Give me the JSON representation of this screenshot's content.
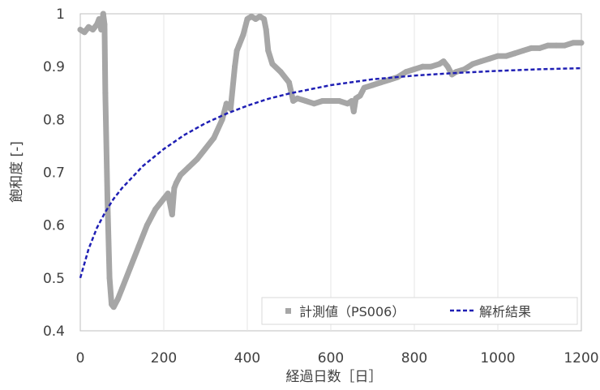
{
  "chart_data": {
    "type": "line",
    "xlabel": "経過日数［日］",
    "ylabel": "飽和度 [-]",
    "xlim": [
      0,
      1200
    ],
    "ylim": [
      0.4,
      1.0
    ],
    "x_ticks": [
      "0",
      "200",
      "400",
      "600",
      "800",
      "1000",
      "1200"
    ],
    "y_ticks": [
      "0.4",
      "0.5",
      "0.6",
      "0.7",
      "0.8",
      "0.9",
      "1"
    ],
    "grid": "vertical",
    "legend_position": "bottom-right",
    "series": [
      {
        "name": "計測値（PS006）",
        "style": "marker-line",
        "color": "#a6a6a6",
        "x": [
          0,
          10,
          20,
          30,
          40,
          45,
          50,
          55,
          58,
          60,
          65,
          70,
          75,
          80,
          90,
          100,
          120,
          140,
          160,
          180,
          200,
          210,
          220,
          225,
          230,
          240,
          260,
          280,
          300,
          320,
          340,
          350,
          360,
          370,
          375,
          380,
          390,
          400,
          410,
          420,
          430,
          440,
          445,
          450,
          460,
          480,
          500,
          510,
          520,
          540,
          560,
          580,
          600,
          620,
          640,
          650,
          655,
          660,
          670,
          680,
          700,
          720,
          740,
          760,
          780,
          800,
          820,
          840,
          860,
          870,
          880,
          890,
          900,
          920,
          940,
          960,
          980,
          1000,
          1020,
          1040,
          1060,
          1080,
          1100,
          1120,
          1140,
          1160,
          1180,
          1200
        ],
        "y": [
          0.97,
          0.965,
          0.975,
          0.97,
          0.98,
          0.99,
          0.97,
          1.0,
          0.98,
          0.85,
          0.65,
          0.5,
          0.45,
          0.445,
          0.46,
          0.48,
          0.52,
          0.56,
          0.6,
          0.63,
          0.65,
          0.66,
          0.62,
          0.67,
          0.68,
          0.695,
          0.71,
          0.725,
          0.745,
          0.765,
          0.8,
          0.83,
          0.82,
          0.9,
          0.93,
          0.94,
          0.96,
          0.99,
          0.995,
          0.99,
          0.995,
          0.99,
          0.97,
          0.93,
          0.905,
          0.89,
          0.87,
          0.835,
          0.84,
          0.835,
          0.83,
          0.835,
          0.835,
          0.835,
          0.83,
          0.835,
          0.815,
          0.84,
          0.845,
          0.86,
          0.865,
          0.87,
          0.875,
          0.88,
          0.89,
          0.895,
          0.9,
          0.9,
          0.905,
          0.91,
          0.9,
          0.885,
          0.89,
          0.895,
          0.905,
          0.91,
          0.915,
          0.92,
          0.92,
          0.925,
          0.93,
          0.935,
          0.935,
          0.94,
          0.94,
          0.94,
          0.945,
          0.945
        ]
      },
      {
        "name": "解析結果",
        "style": "dashed",
        "color": "#1f1fb4",
        "x": [
          0,
          20,
          40,
          60,
          80,
          100,
          150,
          200,
          250,
          300,
          350,
          400,
          450,
          500,
          600,
          700,
          800,
          900,
          1000,
          1100,
          1200
        ],
        "y": [
          0.5,
          0.555,
          0.595,
          0.625,
          0.65,
          0.67,
          0.712,
          0.744,
          0.771,
          0.793,
          0.811,
          0.826,
          0.839,
          0.849,
          0.865,
          0.876,
          0.883,
          0.888,
          0.892,
          0.895,
          0.897
        ]
      }
    ]
  }
}
